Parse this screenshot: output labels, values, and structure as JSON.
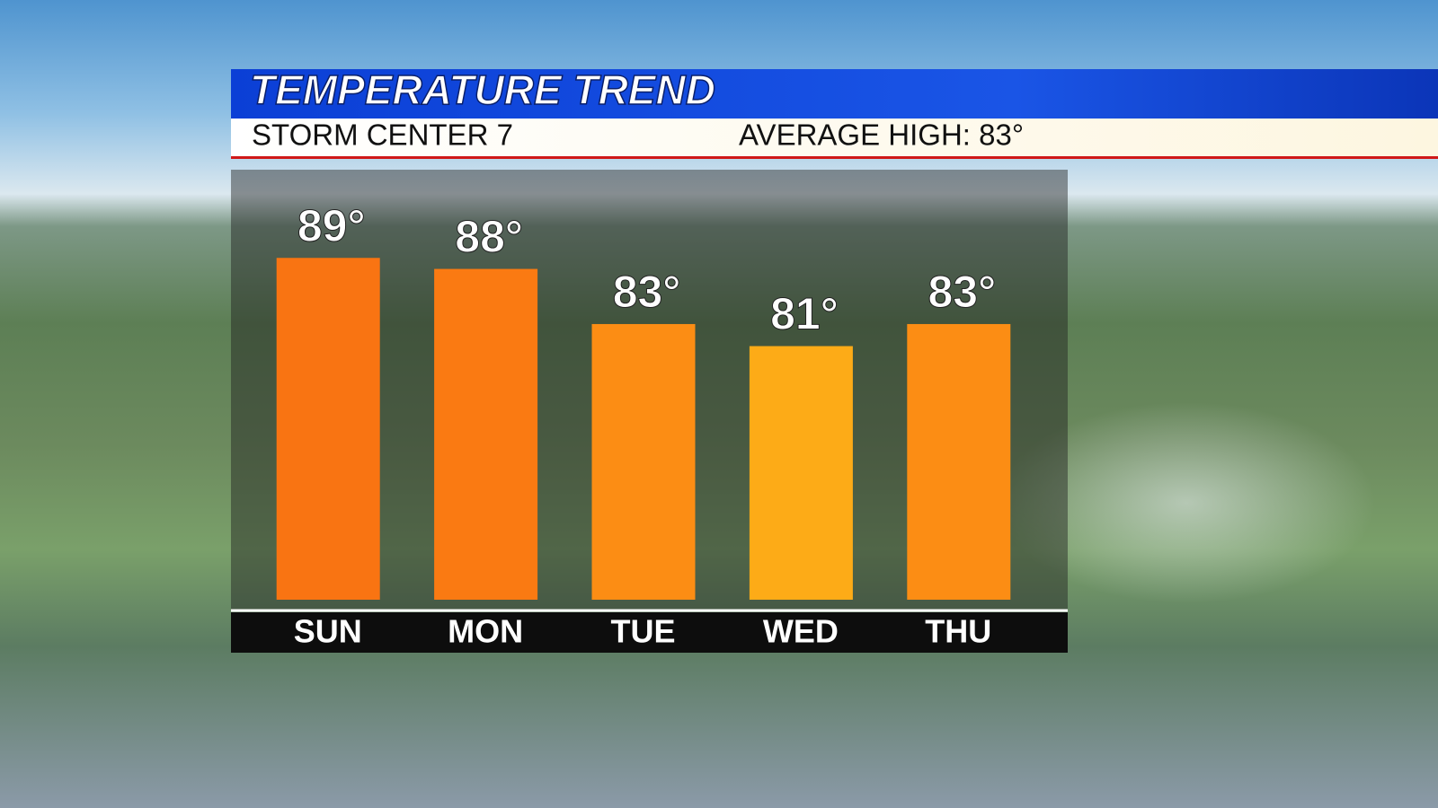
{
  "chart_data": {
    "type": "bar",
    "title": "TEMPERATURE TREND",
    "subtitle": "STORM CENTER 7",
    "annotation": "AVERAGE HIGH: 83°",
    "categories": [
      "SUN",
      "MON",
      "TUE",
      "WED",
      "THU"
    ],
    "values": [
      89,
      88,
      83,
      81,
      83
    ],
    "value_labels": [
      "89°",
      "88°",
      "83°",
      "81°",
      "83°"
    ],
    "colors": [
      "#f97412",
      "#fa7a12",
      "#fc8d14",
      "#fdab17",
      "#fc8d14"
    ],
    "ylim": [
      58,
      97
    ]
  }
}
